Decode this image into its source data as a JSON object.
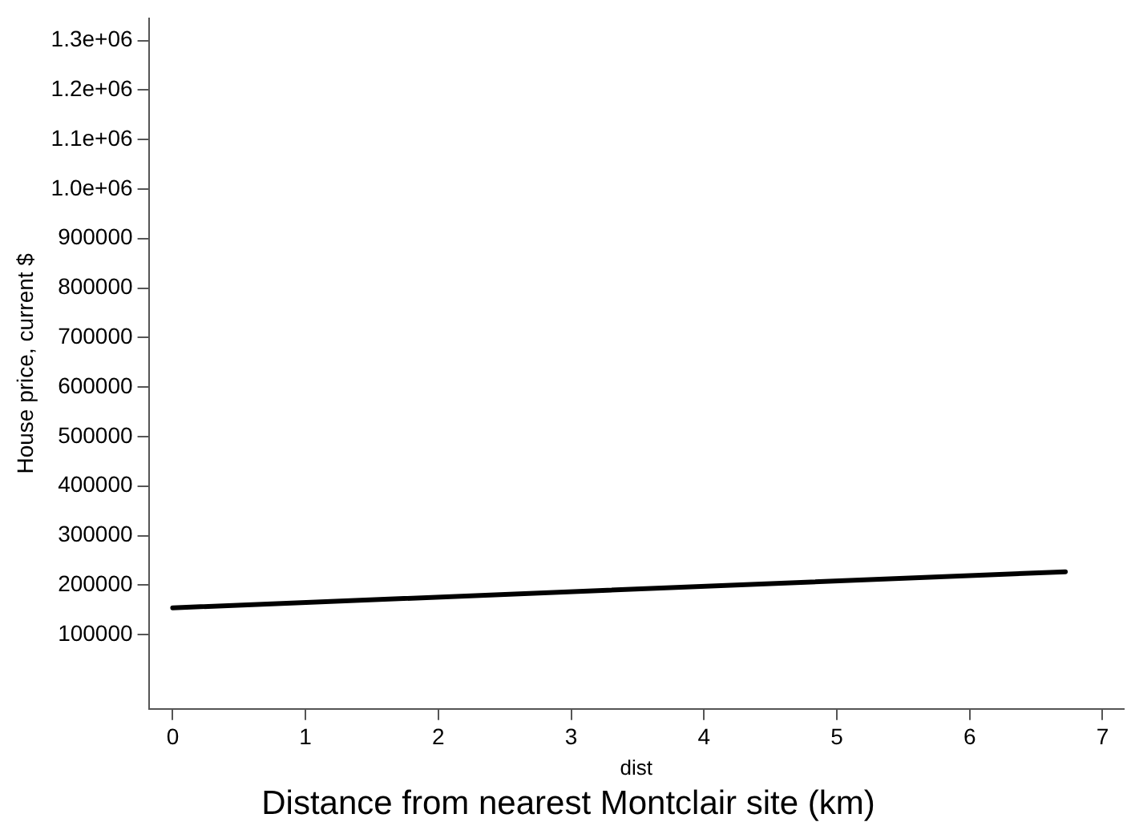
{
  "chart_data": {
    "type": "line",
    "title": "Distance from nearest Montclair site (km)",
    "xlabel": "dist",
    "ylabel": "House price, current $",
    "series": [
      {
        "color": "#000000",
        "x": [
          0,
          6.72
        ],
        "values": [
          154000,
          227000
        ]
      }
    ],
    "xlim": [
      -0.18,
      7.16
    ],
    "xticks": [
      0,
      1,
      2,
      3,
      4,
      5,
      6,
      7
    ],
    "ylim": [
      -50000,
      1345000
    ],
    "yticks": [
      100000,
      200000,
      300000,
      400000,
      500000,
      600000,
      700000,
      800000,
      900000,
      {
        "value": 1000000,
        "label": "1.0e+06"
      },
      {
        "value": 1100000,
        "label": "1.1e+06"
      },
      {
        "value": 1200000,
        "label": "1.2e+06"
      },
      {
        "value": 1300000,
        "label": "1.3e+06"
      }
    ],
    "grid": false,
    "legend": false,
    "marker": "none",
    "line_style": "solid"
  }
}
